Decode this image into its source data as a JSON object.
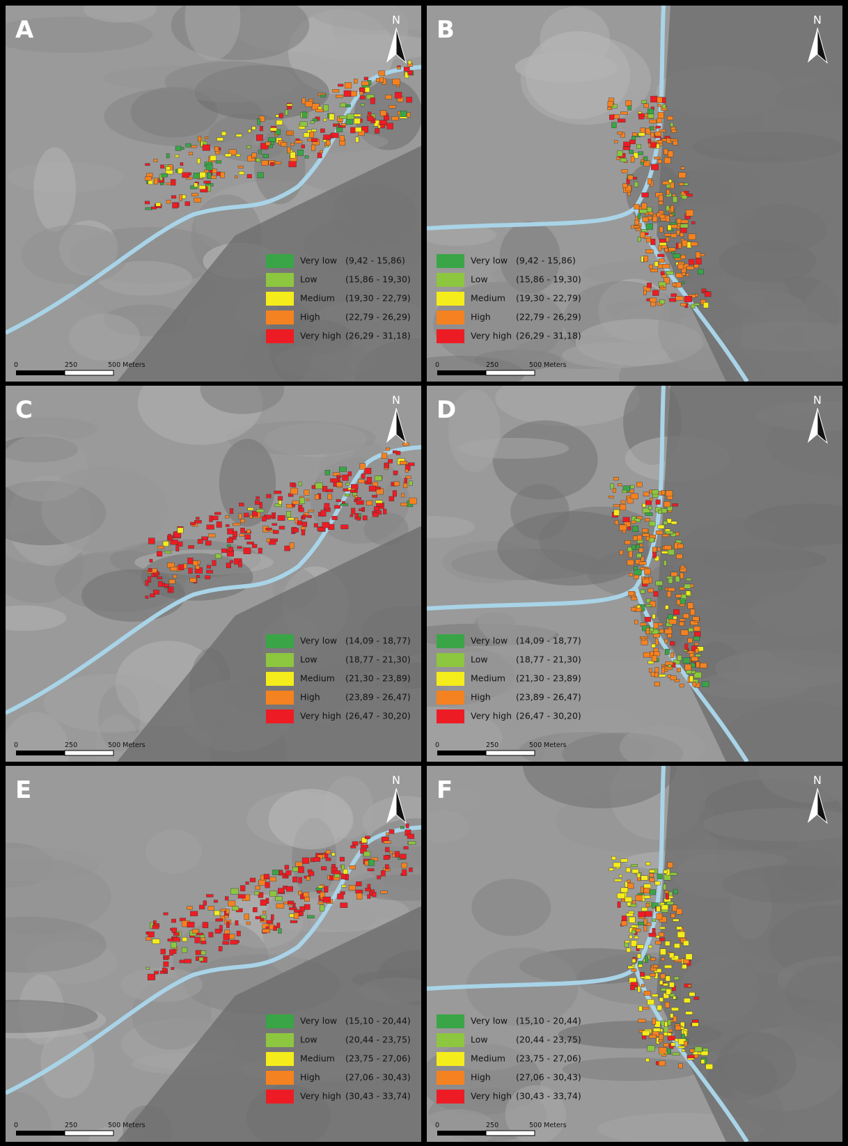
{
  "panels": [
    {
      "label": "A",
      "north": "N",
      "scale": [
        "0",
        "250",
        "500 Meters"
      ],
      "legend": [
        {
          "name": "Very low",
          "range": "(9,42 - 15,86)",
          "color": "#3aa547"
        },
        {
          "name": "Low",
          "range": "(15,86 - 19,30)",
          "color": "#8dc63f"
        },
        {
          "name": "Medium",
          "range": "(19,30 - 22,79)",
          "color": "#f5ec1b"
        },
        {
          "name": "High",
          "range": "(22,79 - 26,29)",
          "color": "#f58220"
        },
        {
          "name": "Very high",
          "range": "(26,29 - 31,18)",
          "color": "#ed1c24"
        }
      ]
    },
    {
      "label": "B",
      "north": "N",
      "scale": [
        "0",
        "250",
        "500 Meters"
      ],
      "legend": [
        {
          "name": "Very low",
          "range": "(9,42 - 15,86)",
          "color": "#3aa547"
        },
        {
          "name": "Low",
          "range": "(15,86 - 19,30)",
          "color": "#8dc63f"
        },
        {
          "name": "Medium",
          "range": "(19,30 - 22,79)",
          "color": "#f5ec1b"
        },
        {
          "name": "High",
          "range": "(22,79 - 26,29)",
          "color": "#f58220"
        },
        {
          "name": "Very high",
          "range": "(26,29 - 31,18)",
          "color": "#ed1c24"
        }
      ]
    },
    {
      "label": "C",
      "north": "N",
      "scale": [
        "0",
        "250",
        "500 Meters"
      ],
      "legend": [
        {
          "name": "Very low",
          "range": "(14,09 - 18,77)",
          "color": "#3aa547"
        },
        {
          "name": "Low",
          "range": "(18,77 - 21,30)",
          "color": "#8dc63f"
        },
        {
          "name": "Medium",
          "range": "(21,30 - 23,89)",
          "color": "#f5ec1b"
        },
        {
          "name": "High",
          "range": "(23,89 - 26,47)",
          "color": "#f58220"
        },
        {
          "name": "Very high",
          "range": "(26,47 - 30,20)",
          "color": "#ed1c24"
        }
      ]
    },
    {
      "label": "D",
      "north": "N",
      "scale": [
        "0",
        "250",
        "500 Meters"
      ],
      "legend": [
        {
          "name": "Very low",
          "range": "(14,09 - 18,77)",
          "color": "#3aa547"
        },
        {
          "name": "Low",
          "range": "(18,77 - 21,30)",
          "color": "#8dc63f"
        },
        {
          "name": "Medium",
          "range": "(21,30 - 23,89)",
          "color": "#f5ec1b"
        },
        {
          "name": "High",
          "range": "(23,89 - 26,47)",
          "color": "#f58220"
        },
        {
          "name": "Very high",
          "range": "(26,47 - 30,20)",
          "color": "#ed1c24"
        }
      ]
    },
    {
      "label": "E",
      "north": "N",
      "scale": [
        "0",
        "250",
        "500 Meters"
      ],
      "legend": [
        {
          "name": "Very low",
          "range": "(15,10 - 20,44)",
          "color": "#3aa547"
        },
        {
          "name": "Low",
          "range": "(20,44 - 23,75)",
          "color": "#8dc63f"
        },
        {
          "name": "Medium",
          "range": "(23,75 - 27,06)",
          "color": "#f5ec1b"
        },
        {
          "name": "High",
          "range": "(27,06 - 30,43)",
          "color": "#f58220"
        },
        {
          "name": "Very high",
          "range": "(30,43 - 33,74)",
          "color": "#ed1c24"
        }
      ]
    },
    {
      "label": "F",
      "north": "N",
      "scale": [
        "0",
        "250",
        "500 Meters"
      ],
      "legend": [
        {
          "name": "Very low",
          "range": "(15,10 - 20,44)",
          "color": "#3aa547"
        },
        {
          "name": "Low",
          "range": "(20,44 - 23,75)",
          "color": "#8dc63f"
        },
        {
          "name": "Medium",
          "range": "(23,75 - 27,06)",
          "color": "#f5ec1b"
        },
        {
          "name": "High",
          "range": "(27,06 - 30,43)",
          "color": "#f58220"
        },
        {
          "name": "Very high",
          "range": "(30,43 - 33,74)",
          "color": "#ed1c24"
        }
      ]
    }
  ]
}
